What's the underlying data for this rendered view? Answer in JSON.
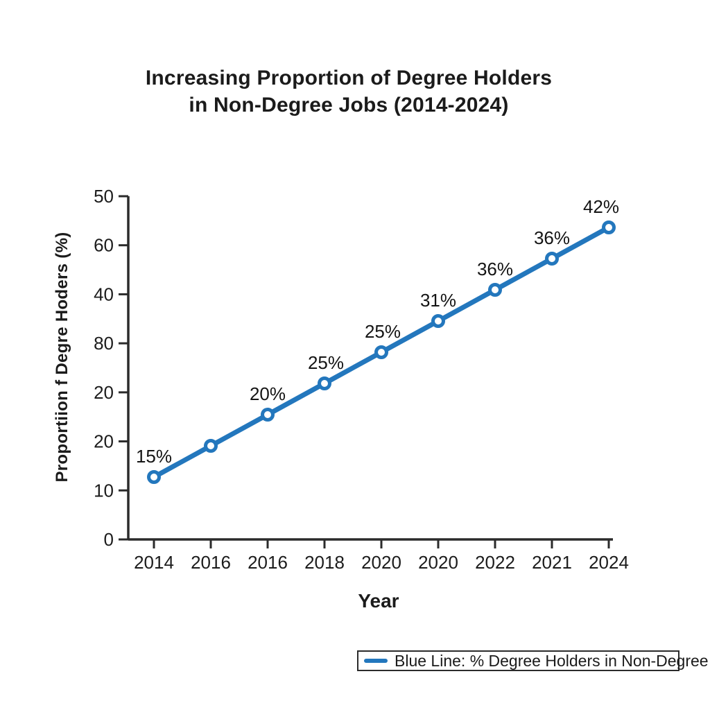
{
  "title": {
    "line1": "Increasing Proportion of Degree Holders",
    "line2": "in Non-Degree Jobs (2014-2024)"
  },
  "chart_data": {
    "type": "line",
    "title": "Increasing Proportion of Degree Holders in Non-Degree Jobs (2014-2024)",
    "xlabel": "Year",
    "ylabel": "Proportiion f Degre Hoders (%)",
    "x_tick_labels": [
      "2014",
      "2016",
      "2016",
      "2018",
      "2020",
      "2020",
      "2022",
      "2021",
      "2024"
    ],
    "y_tick_labels_top_to_bottom": [
      "50",
      "60",
      "40",
      "80",
      "20",
      "20",
      "10",
      "0"
    ],
    "grid": false,
    "legend_position": "bottom-right",
    "series": [
      {
        "name": "Blue Line: % Degree Holders in Non-Degree Jobs",
        "color": "#2377bd",
        "marker": "open-circle",
        "point_labels": [
          "15%",
          "",
          "20%",
          "25%",
          "25%",
          "31%",
          "36%",
          "36%",
          "42%"
        ],
        "labeled_values_percent": [
          15,
          null,
          20,
          25,
          25,
          31,
          36,
          36,
          42
        ]
      }
    ]
  },
  "legend": {
    "label": "Blue Line: % Degree Holders in Non-Degree Jobs"
  },
  "colors": {
    "line_blue": "#2377bd",
    "marker_fill": "#ffffff",
    "text": "#1b1b1b",
    "axis": "#2b2b2b",
    "background": "#ffffff"
  }
}
